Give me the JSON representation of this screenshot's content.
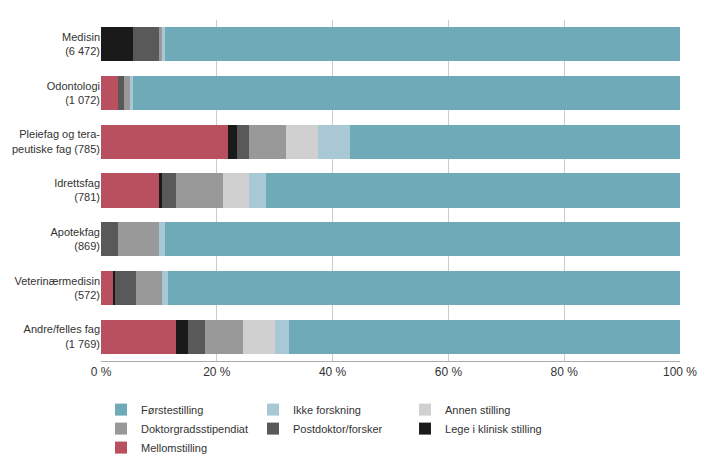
{
  "chart_data": {
    "type": "bar",
    "orientation": "horizontal",
    "stacked": true,
    "categories": [
      "Medisin\n(6 472)",
      "Odontologi\n(1 072)",
      "Pleiefag og tera-\npeutiske fag (785)",
      "Idrettsfag\n(781)",
      "Apotekfag\n(869)",
      "Veterinærmedisin\n(572)",
      "Andre/felles fag\n(1 769)"
    ],
    "series": [
      {
        "name": "Mellomstilling",
        "color": "#b85060",
        "values": [
          0.0,
          3.0,
          22.0,
          10.0,
          0.0,
          2.0,
          13.0
        ]
      },
      {
        "name": "Lege i klinisk stilling",
        "color": "#1a1a1a",
        "values": [
          5.5,
          0.0,
          1.5,
          0.5,
          0.0,
          0.5,
          2.0
        ]
      },
      {
        "name": "Postdoktor/forsker",
        "color": "#595959",
        "values": [
          4.5,
          1.0,
          2.0,
          2.5,
          3.0,
          3.5,
          3.0
        ]
      },
      {
        "name": "Doktorgradsstipendiat",
        "color": "#999999",
        "values": [
          0.5,
          1.0,
          6.5,
          8.0,
          7.0,
          4.5,
          6.5
        ]
      },
      {
        "name": "Annen stilling",
        "color": "#d0d0d0",
        "values": [
          0.0,
          0.0,
          5.5,
          4.5,
          0.0,
          0.0,
          5.5
        ]
      },
      {
        "name": "Ikke forskning",
        "color": "#a8c8d5",
        "values": [
          0.5,
          0.5,
          5.5,
          3.0,
          1.0,
          1.0,
          2.5
        ]
      },
      {
        "name": "Førstestilling",
        "color": "#6eaab8",
        "values": [
          89.0,
          94.5,
          57.0,
          71.5,
          89.0,
          88.5,
          67.5
        ]
      }
    ],
    "xlim": [
      0,
      100
    ],
    "xticks": [
      {
        "value": 0,
        "label": "0 %"
      },
      {
        "value": 20,
        "label": "20 %"
      },
      {
        "value": 40,
        "label": "40 %"
      },
      {
        "value": 60,
        "label": "60 %"
      },
      {
        "value": 80,
        "label": "80 %"
      },
      {
        "value": 100,
        "label": "100 %"
      }
    ],
    "grid": true,
    "legend": "bottom"
  }
}
